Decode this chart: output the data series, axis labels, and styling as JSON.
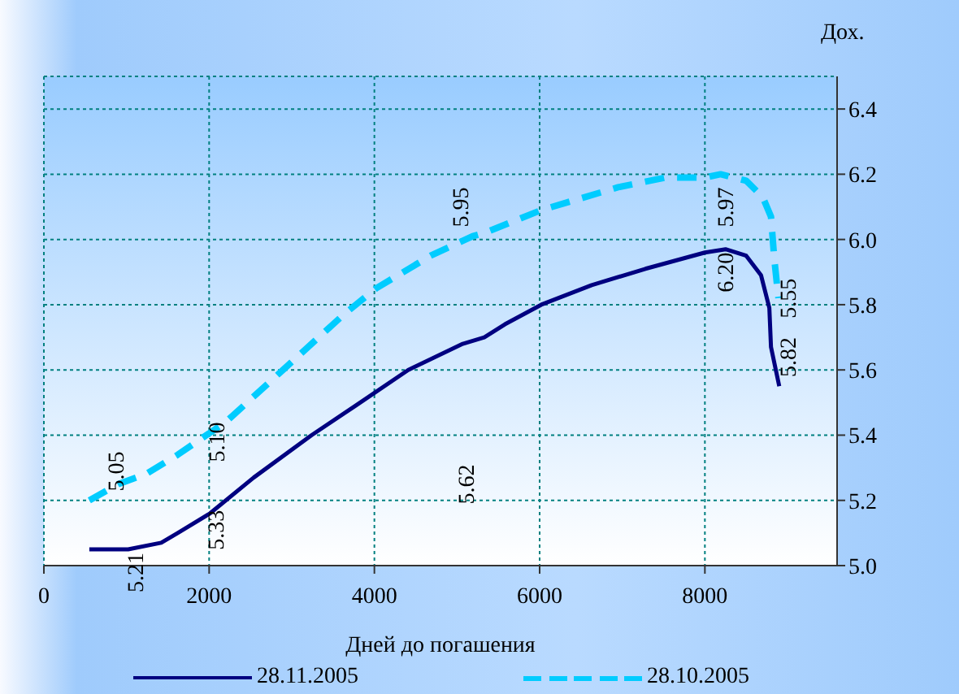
{
  "chart_data": {
    "type": "line",
    "xlabel": "Дней до погашения",
    "ylabel": "Дох.",
    "xlim": [
      0,
      9600
    ],
    "xticks": [
      0,
      2000,
      4000,
      6000,
      8000
    ],
    "ylim": [
      5,
      6.5
    ],
    "yticks": [
      {
        "value": 5,
        "label": "5.0"
      },
      {
        "value": 5.2,
        "label": "5.2"
      },
      {
        "value": 5.4,
        "label": "5.4"
      },
      {
        "value": 5.6,
        "label": "5.6"
      },
      {
        "value": 5.8,
        "label": "5.8"
      },
      {
        "value": 6,
        "label": "6.0"
      },
      {
        "value": 6.2,
        "label": "6.2"
      },
      {
        "value": 6.4,
        "label": "6.4"
      }
    ],
    "grid": true,
    "legend": "bottom",
    "marker": "none",
    "series": [
      {
        "name": "28.11.2005",
        "color": "#000080",
        "line_style": "solid",
        "x": [
          550,
          1020,
          1420,
          1620,
          2010,
          2540,
          3240,
          3770,
          4410,
          5070,
          5330,
          5580,
          6020,
          6630,
          7280,
          8000,
          8250,
          8500,
          8680,
          8780,
          8800,
          8900
        ],
        "values": [
          5.05,
          5.05,
          5.07,
          5.1,
          5.16,
          5.27,
          5.4,
          5.49,
          5.6,
          5.68,
          5.7,
          5.74,
          5.8,
          5.86,
          5.91,
          5.96,
          5.97,
          5.95,
          5.89,
          5.79,
          5.67,
          5.55
        ]
      },
      {
        "name": "28.10.2005",
        "color": "#00ccff",
        "line_style": "dashed",
        "x": [
          550,
          900,
          1230,
          1620,
          2200,
          2850,
          3630,
          4020,
          4680,
          5190,
          5330,
          6020,
          6950,
          7530,
          8000,
          8190,
          8500,
          8700,
          8800,
          8840,
          8890
        ],
        "values": [
          5.2,
          5.25,
          5.28,
          5.34,
          5.44,
          5.59,
          5.77,
          5.85,
          5.95,
          6.01,
          6.02,
          6.09,
          6.16,
          6.19,
          6.19,
          6.2,
          6.18,
          6.13,
          6.07,
          5.94,
          5.82
        ]
      }
    ],
    "annotations": [
      "5.21",
      "5.33",
      "5.05",
      "5.10",
      "5.62",
      "5.95",
      "5.97",
      "6.20",
      "5.55",
      "5.82"
    ]
  }
}
